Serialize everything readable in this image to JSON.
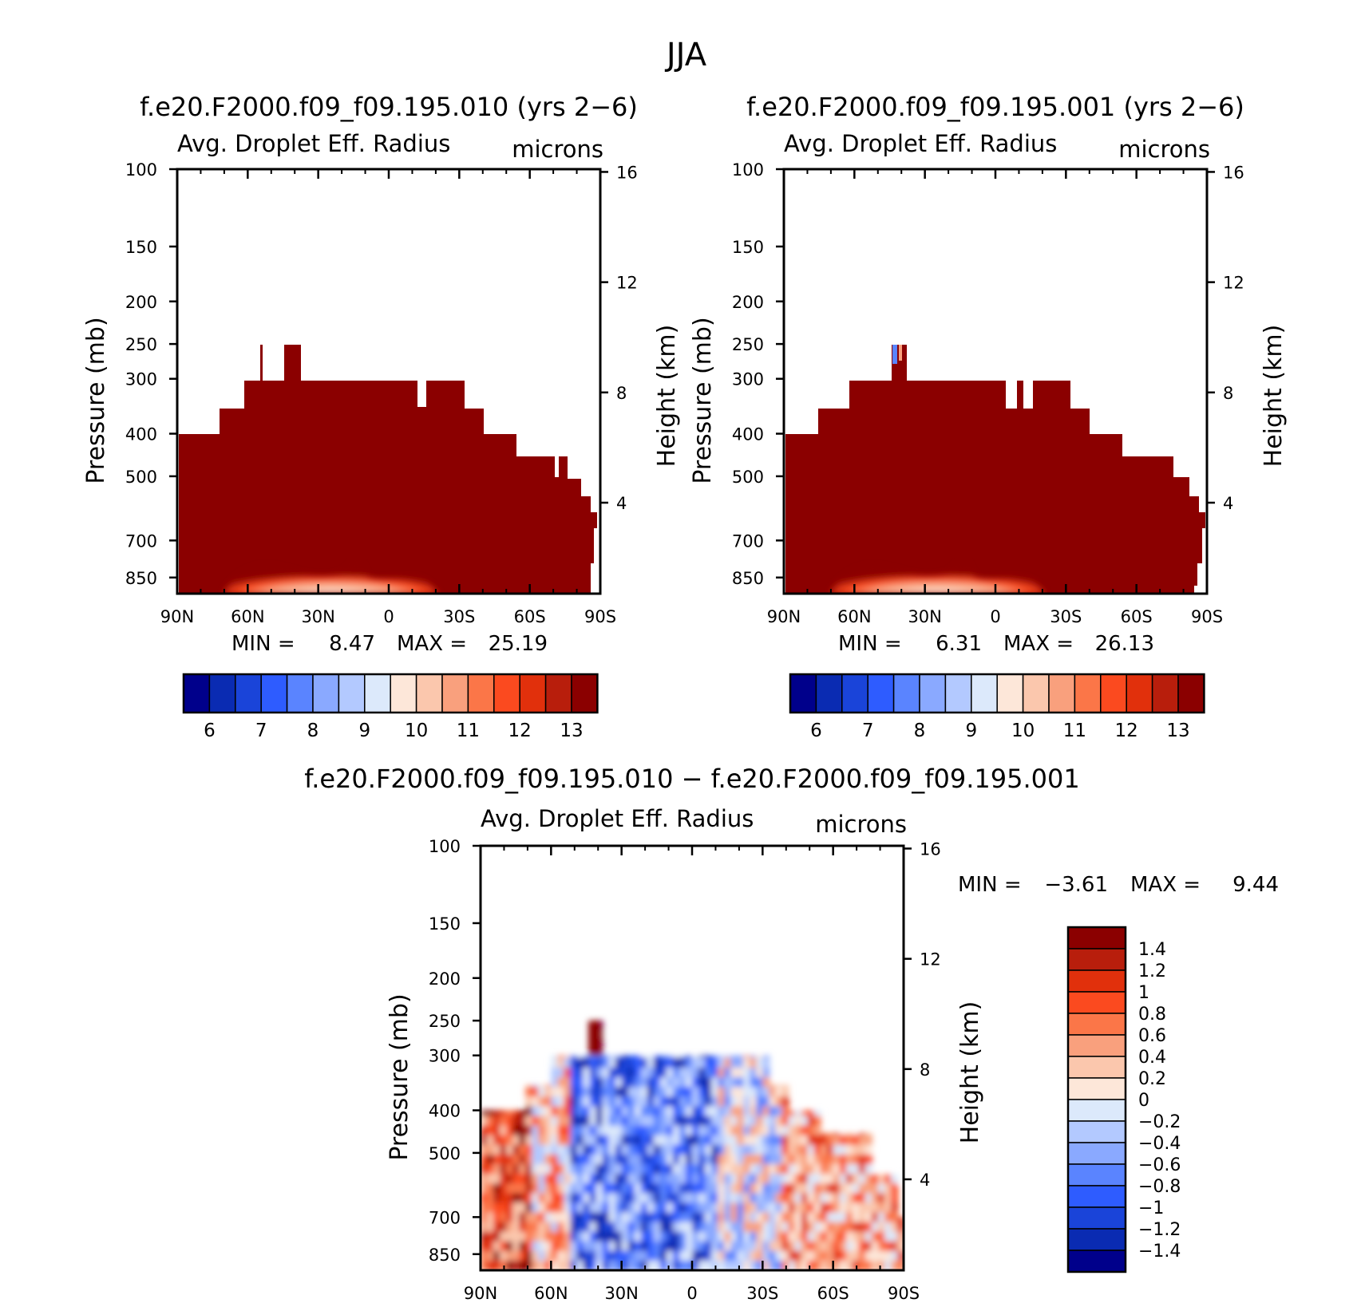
{
  "figure_title": "JJA",
  "chart_data": [
    {
      "type": "heatmap",
      "title": "f.e20.F2000.f09_f09.195.010 (yrs 2−6)",
      "subtitle": "Avg. Droplet Eff. Radius",
      "units": "microns",
      "ylabel": "Pressure (mb)",
      "y2label": "Height (km)",
      "xticks": [
        "90N",
        "60N",
        "30N",
        "0",
        "30S",
        "60S",
        "90S"
      ],
      "yticks": [
        "100",
        "150",
        "200",
        "250",
        "300",
        "400",
        "500",
        "700",
        "850"
      ],
      "y2ticks": [
        "16",
        "12",
        "8",
        "4"
      ],
      "min_label": "MIN =",
      "min_value": "8.47",
      "max_label": "MAX =",
      "max_value": "25.19",
      "colorbar": {
        "orientation": "horizontal",
        "labels": [
          "6",
          "7",
          "8",
          "9",
          "10",
          "11",
          "12",
          "13"
        ],
        "colors": [
          "#00008b",
          "#0a2bb2",
          "#1a44d9",
          "#2e5cff",
          "#5a84ff",
          "#8aa9ff",
          "#b3c9ff",
          "#dce9fb",
          "#fde7d9",
          "#fbc7ad",
          "#f9a07d",
          "#fb7648",
          "#fb4a1f",
          "#e1300c",
          "#b81e0c",
          "#8b0000"
        ]
      },
      "field_color": "#8b0000"
    },
    {
      "type": "heatmap",
      "title": "f.e20.F2000.f09_f09.195.001 (yrs 2−6)",
      "subtitle": "Avg. Droplet Eff. Radius",
      "units": "microns",
      "ylabel": "Pressure (mb)",
      "y2label": "Height (km)",
      "xticks": [
        "90N",
        "60N",
        "30N",
        "0",
        "30S",
        "60S",
        "90S"
      ],
      "yticks": [
        "100",
        "150",
        "200",
        "250",
        "300",
        "400",
        "500",
        "700",
        "850"
      ],
      "y2ticks": [
        "16",
        "12",
        "8",
        "4"
      ],
      "min_label": "MIN =",
      "min_value": "6.31",
      "max_label": "MAX =",
      "max_value": "26.13",
      "colorbar": {
        "orientation": "horizontal",
        "labels": [
          "6",
          "7",
          "8",
          "9",
          "10",
          "11",
          "12",
          "13"
        ],
        "colors": [
          "#00008b",
          "#0a2bb2",
          "#1a44d9",
          "#2e5cff",
          "#5a84ff",
          "#8aa9ff",
          "#b3c9ff",
          "#dce9fb",
          "#fde7d9",
          "#fbc7ad",
          "#f9a07d",
          "#fb7648",
          "#fb4a1f",
          "#e1300c",
          "#b81e0c",
          "#8b0000"
        ]
      },
      "field_color": "#8b0000"
    },
    {
      "type": "heatmap",
      "title": "f.e20.F2000.f09_f09.195.010 − f.e20.F2000.f09_f09.195.001",
      "subtitle": "Avg. Droplet Eff. Radius",
      "units": "microns",
      "ylabel": "Pressure (mb)",
      "y2label": "Height (km)",
      "xticks": [
        "90N",
        "60N",
        "30N",
        "0",
        "30S",
        "60S",
        "90S"
      ],
      "yticks": [
        "100",
        "150",
        "200",
        "250",
        "300",
        "400",
        "500",
        "700",
        "850"
      ],
      "y2ticks": [
        "16",
        "12",
        "8",
        "4"
      ],
      "min_label": "MIN =",
      "min_value": "−3.61",
      "max_label": "MAX =",
      "max_value": "9.44",
      "colorbar": {
        "orientation": "vertical",
        "labels": [
          "1.4",
          "1.2",
          "1",
          "0.8",
          "0.6",
          "0.4",
          "0.2",
          "0",
          "−0.2",
          "−0.4",
          "−0.6",
          "−0.8",
          "−1",
          "−1.2",
          "−1.4"
        ],
        "colors": [
          "#8b0000",
          "#b81e0c",
          "#e1300c",
          "#fb4a1f",
          "#fb7648",
          "#f9a07d",
          "#fbc7ad",
          "#fde7d9",
          "#dce9fb",
          "#b3c9ff",
          "#8aa9ff",
          "#5a84ff",
          "#2e5cff",
          "#1a44d9",
          "#0a2bb2",
          "#00008b"
        ]
      }
    }
  ]
}
